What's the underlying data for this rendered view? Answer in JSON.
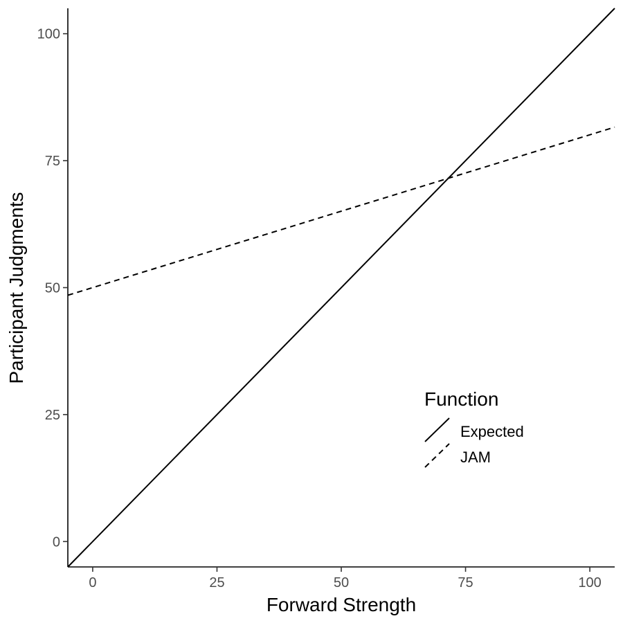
{
  "chart_data": {
    "type": "line",
    "xlabel": "Forward Strength",
    "ylabel": "Participant Judgments",
    "xlim": [
      -5,
      105
    ],
    "ylim": [
      -5,
      105
    ],
    "x_ticks": [
      0,
      25,
      50,
      75,
      100
    ],
    "y_ticks": [
      0,
      25,
      50,
      75,
      100
    ],
    "grid": false,
    "legend": {
      "title": "Function",
      "placement": "bottom-right-inside"
    },
    "series": [
      {
        "name": "Expected",
        "linestyle": "solid",
        "x": [
          -5,
          105
        ],
        "y": [
          -5,
          105
        ]
      },
      {
        "name": "JAM",
        "linestyle": "dashed",
        "x": [
          -5,
          105
        ],
        "y": [
          48.5,
          81.6
        ]
      }
    ]
  }
}
